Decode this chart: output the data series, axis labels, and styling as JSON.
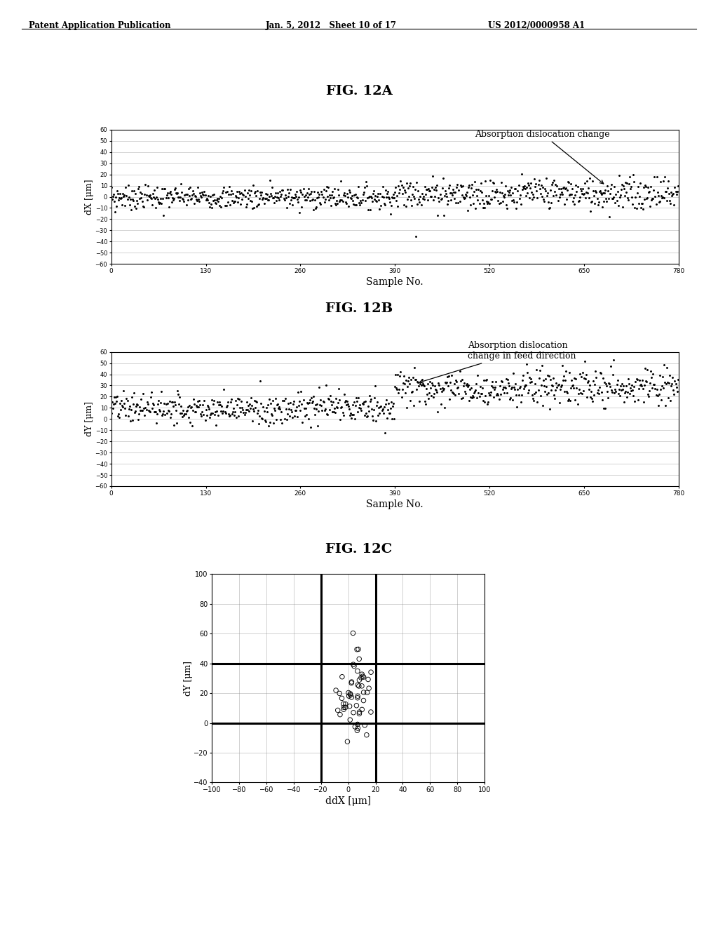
{
  "header_left": "Patent Application Publication",
  "header_mid": "Jan. 5, 2012   Sheet 10 of 17",
  "header_right": "US 2012/0000958 A1",
  "fig_a_title": "FIG. 12A",
  "fig_b_title": "FIG. 12B",
  "fig_c_title": "FIG. 12C",
  "fig_a_annotation": "Absorption dislocation change",
  "fig_b_annotation": "Absorption dislocation\nchange in feed direction",
  "fig_a_ylabel": "dX [μm]",
  "fig_b_ylabel": "dY [μm]",
  "fig_c_ylabel": "dY [μm]",
  "fig_c_xlabel": "ddX [μm]",
  "fig_ab_xlabel": "Sample No.",
  "fig_a_yticks": [
    60,
    50,
    40,
    30,
    20,
    10,
    0,
    -10,
    -20,
    -30,
    -40,
    -50,
    -60
  ],
  "fig_b_yticks": [
    60,
    50,
    40,
    30,
    20,
    10,
    0,
    -10,
    -20,
    -30,
    -40,
    -50,
    -60
  ],
  "fig_ab_xticks": [
    0,
    130,
    260,
    390,
    520,
    650,
    780
  ],
  "fig_ab_xlim": [
    0,
    780
  ],
  "fig_ab_ylim": [
    -60,
    60
  ],
  "fig_c_xlim": [
    -100,
    100
  ],
  "fig_c_ylim": [
    -40,
    100
  ],
  "fig_c_xticks": [
    -100,
    -80,
    -60,
    -40,
    -20,
    0,
    20,
    40,
    60,
    80,
    100
  ],
  "fig_c_yticks": [
    -40,
    -20,
    0,
    20,
    40,
    60,
    80,
    100
  ],
  "background_color": "#ffffff",
  "plot_bg_color": "#ffffff",
  "data_color": "#000000"
}
